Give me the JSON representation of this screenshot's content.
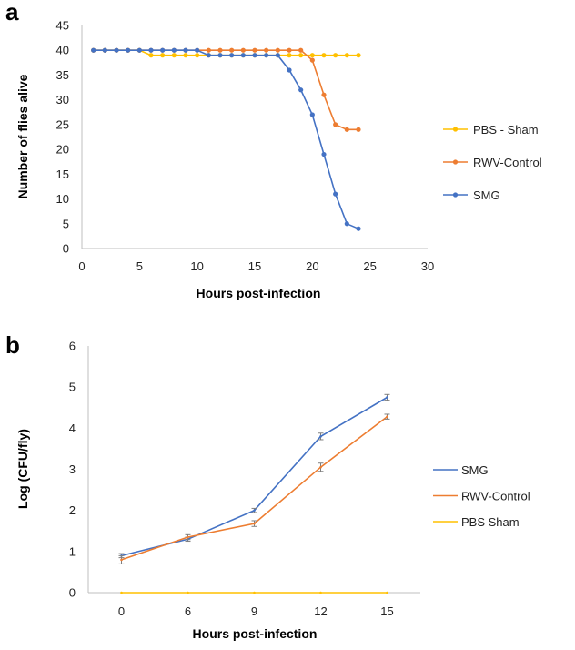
{
  "chart_data": [
    {
      "panel_label": "a",
      "type": "line",
      "title": "",
      "xlabel": "Hours post-infection",
      "ylabel": "Number of flies alive",
      "xlim": [
        0,
        30
      ],
      "ylim": [
        0,
        45
      ],
      "xticks": [
        0,
        5,
        10,
        15,
        20,
        25,
        30
      ],
      "yticks": [
        0,
        5,
        10,
        15,
        20,
        25,
        30,
        35,
        40,
        45
      ],
      "grid": false,
      "legend_position": "right",
      "markers": true,
      "series": [
        {
          "name": "PBS - Sham",
          "color": "#FFC000",
          "x": [
            1,
            2,
            3,
            4,
            5,
            6,
            7,
            8,
            9,
            10,
            11,
            12,
            13,
            14,
            15,
            16,
            17,
            18,
            19,
            20,
            21,
            22,
            23,
            24
          ],
          "y": [
            40,
            40,
            40,
            40,
            40,
            39,
            39,
            39,
            39,
            39,
            39,
            39,
            39,
            39,
            39,
            39,
            39,
            39,
            39,
            39,
            39,
            39,
            39,
            39
          ]
        },
        {
          "name": "RWV-Control",
          "color": "#ED7D31",
          "x": [
            1,
            2,
            3,
            4,
            5,
            6,
            7,
            8,
            9,
            10,
            11,
            12,
            13,
            14,
            15,
            16,
            17,
            18,
            19,
            20,
            21,
            22,
            23,
            24
          ],
          "y": [
            40,
            40,
            40,
            40,
            40,
            40,
            40,
            40,
            40,
            40,
            40,
            40,
            40,
            40,
            40,
            40,
            40,
            40,
            40,
            38,
            31,
            25,
            24,
            24
          ]
        },
        {
          "name": "SMG",
          "color": "#4472C4",
          "x": [
            1,
            2,
            3,
            4,
            5,
            6,
            7,
            8,
            9,
            10,
            11,
            12,
            13,
            14,
            15,
            16,
            17,
            18,
            19,
            20,
            21,
            22,
            23,
            24
          ],
          "y": [
            40,
            40,
            40,
            40,
            40,
            40,
            40,
            40,
            40,
            40,
            39,
            39,
            39,
            39,
            39,
            39,
            39,
            36,
            32,
            27,
            19,
            11,
            5,
            4
          ]
        }
      ]
    },
    {
      "panel_label": "b",
      "type": "line",
      "title": "",
      "xlabel": "Hours post-infection",
      "ylabel": "Log (CFU/fly)",
      "categories": [
        "0",
        "6",
        "9",
        "12",
        "15"
      ],
      "ylim": [
        0,
        6
      ],
      "yticks": [
        0,
        1,
        2,
        3,
        4,
        5,
        6
      ],
      "grid": false,
      "legend_position": "right",
      "error_bars": true,
      "series": [
        {
          "name": "SMG",
          "color": "#4472C4",
          "values": [
            0.9,
            1.3,
            2.0,
            3.8,
            4.75
          ],
          "errors": [
            0.05,
            0.05,
            0.05,
            0.08,
            0.07
          ]
        },
        {
          "name": "RWV-Control",
          "color": "#ED7D31",
          "values": [
            0.8,
            1.35,
            1.68,
            3.05,
            4.28
          ],
          "errors": [
            0.1,
            0.06,
            0.07,
            0.1,
            0.06
          ]
        },
        {
          "name": "PBS Sham",
          "color": "#FFC000",
          "values": [
            0,
            0,
            0,
            0,
            0
          ],
          "errors": [
            0,
            0,
            0,
            0,
            0
          ]
        }
      ]
    }
  ]
}
